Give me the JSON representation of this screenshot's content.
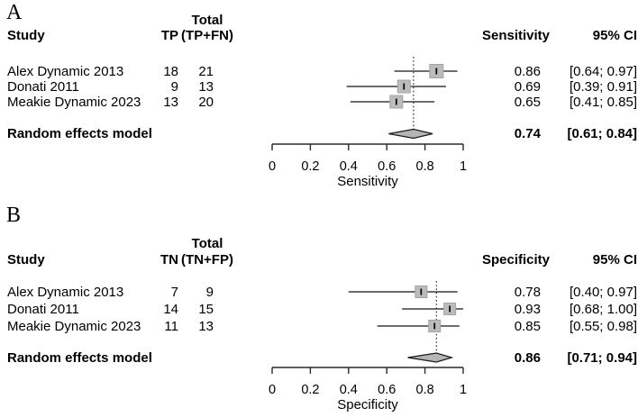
{
  "colors": {
    "square_fill": "#bcbcbc",
    "square_border": "#a3a3a3",
    "diamond_fill": "#b5b5b5",
    "diamond_stroke": "#1a1a1a",
    "ci_line": "#3d3d3d",
    "axis": "#2b2b2b",
    "marker": "#000000",
    "text": "#000000"
  },
  "figure": {
    "panels": [
      {
        "label": "A",
        "header": {
          "study": "Study",
          "count": "TP",
          "total_line1": "Total",
          "total_line2": "(TP+FN)",
          "estimate": "Sensitivity",
          "ci": "95% CI"
        },
        "rows": [
          {
            "study": "Alex Dynamic 2013",
            "count": "18",
            "total": "21",
            "estimate": "0.86",
            "ci": "[0.64; 0.97]"
          },
          {
            "study": "Donati 2011",
            "count": "9",
            "total": "13",
            "estimate": "0.69",
            "ci": "[0.39; 0.91]"
          },
          {
            "study": "Meakie Dynamic 2023",
            "count": "13",
            "total": "20",
            "estimate": "0.65",
            "ci": "[0.41; 0.85]"
          }
        ],
        "pooled_row": {
          "label": "Random effects model",
          "estimate": "0.74",
          "ci": "[0.61; 0.84]"
        }
      },
      {
        "label": "B",
        "header": {
          "study": "Study",
          "count": "TN",
          "total_line1": "Total",
          "total_line2": "(TN+FP)",
          "estimate": "Specificity",
          "ci": "95% CI"
        },
        "rows": [
          {
            "study": "Alex Dynamic 2013",
            "count": "7",
            "total": "9",
            "estimate": "0.78",
            "ci": "[0.40; 0.97]"
          },
          {
            "study": "Donati 2011",
            "count": "14",
            "total": "15",
            "estimate": "0.93",
            "ci": "[0.68; 1.00]"
          },
          {
            "study": "Meakie Dynamic 2023",
            "count": "11",
            "total": "13",
            "estimate": "0.85",
            "ci": "[0.55; 0.98]"
          }
        ],
        "pooled_row": {
          "label": "Random effects model",
          "estimate": "0.86",
          "ci": "[0.71; 0.94]"
        }
      }
    ]
  },
  "chart_data": [
    {
      "type": "forest",
      "panel": "A",
      "xlabel": "Sensitivity",
      "xlim": [
        0,
        1
      ],
      "ticks": [
        0,
        0.2,
        0.4,
        0.6,
        0.8,
        1
      ],
      "tick_labels": [
        "0",
        "0.2",
        "0.4",
        "0.6",
        "0.8",
        "1"
      ],
      "grid": false,
      "studies": [
        {
          "name": "Alex Dynamic 2013",
          "tp": 18,
          "total": 21,
          "estimate": 0.86,
          "ci_lower": 0.64,
          "ci_upper": 0.97
        },
        {
          "name": "Donati 2011",
          "tp": 9,
          "total": 13,
          "estimate": 0.69,
          "ci_lower": 0.39,
          "ci_upper": 0.91
        },
        {
          "name": "Meakie Dynamic 2023",
          "tp": 13,
          "total": 20,
          "estimate": 0.65,
          "ci_lower": 0.41,
          "ci_upper": 0.85
        }
      ],
      "pooled": {
        "name": "Random effects model",
        "estimate": 0.74,
        "ci_lower": 0.61,
        "ci_upper": 0.84
      },
      "reference_line": 0.74
    },
    {
      "type": "forest",
      "panel": "B",
      "xlabel": "Specificity",
      "xlim": [
        0,
        1
      ],
      "ticks": [
        0,
        0.2,
        0.4,
        0.6,
        0.8,
        1
      ],
      "tick_labels": [
        "0",
        "0.2",
        "0.4",
        "0.6",
        "0.8",
        "1"
      ],
      "grid": false,
      "studies": [
        {
          "name": "Alex Dynamic 2013",
          "tn": 7,
          "total": 9,
          "estimate": 0.78,
          "ci_lower": 0.4,
          "ci_upper": 0.97
        },
        {
          "name": "Donati 2011",
          "tn": 14,
          "total": 15,
          "estimate": 0.93,
          "ci_lower": 0.68,
          "ci_upper": 1.0
        },
        {
          "name": "Meakie Dynamic 2023",
          "tn": 11,
          "total": 13,
          "estimate": 0.85,
          "ci_lower": 0.55,
          "ci_upper": 0.98
        }
      ],
      "pooled": {
        "name": "Random effects model",
        "estimate": 0.86,
        "ci_lower": 0.71,
        "ci_upper": 0.94
      },
      "reference_line": 0.86
    }
  ]
}
